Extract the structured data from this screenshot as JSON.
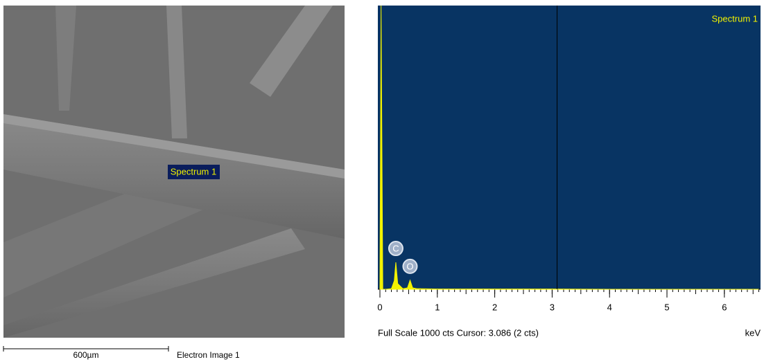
{
  "image": {
    "label": "Spectrum 1",
    "scale_bar": "600µm",
    "caption": "Electron Image 1"
  },
  "chart_data": {
    "type": "area",
    "title": "Spectrum 1",
    "x": [
      0,
      0.02,
      0.05,
      0.1,
      0.2,
      0.25,
      0.277,
      0.31,
      0.4,
      0.48,
      0.525,
      0.57,
      0.65,
      1,
      2,
      3,
      4,
      5,
      6,
      6.6
    ],
    "series": [
      {
        "name": "Spectrum 1",
        "color": "#f2f200",
        "values": [
          0,
          1000,
          0,
          0,
          2,
          30,
          95,
          20,
          2,
          5,
          32,
          5,
          2,
          1,
          1,
          1,
          0,
          0,
          0,
          0
        ]
      }
    ],
    "elements": [
      {
        "label": "C",
        "x": 0.277
      },
      {
        "label": "O",
        "x": 0.525
      }
    ],
    "cursor": 3.086,
    "xlim": [
      0,
      6.63
    ],
    "xticks": [
      0,
      1,
      2,
      3,
      4,
      5,
      6
    ],
    "ylim": [
      0,
      1000
    ],
    "xlabel": "keV",
    "footer": "Full Scale 1000 cts Cursor: 3.086  (2 cts)"
  }
}
